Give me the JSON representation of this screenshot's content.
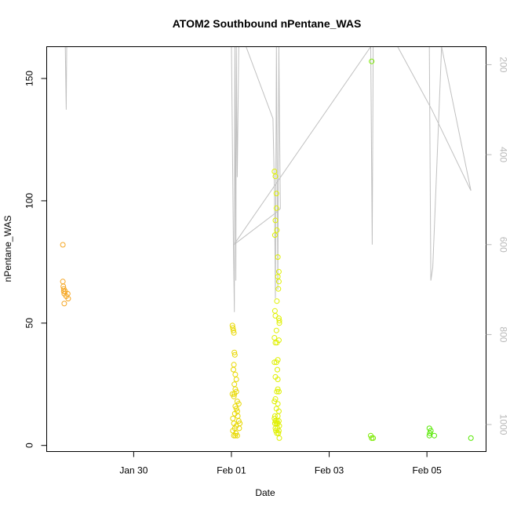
{
  "chart_data": {
    "type": "scatter",
    "title": "ATOM2 Southbound nPentane_WAS",
    "xlabel": "Date",
    "ylabel": "nPentane_WAS",
    "xlim": [
      28.22,
      37.21
    ],
    "ylim": [
      -2.5,
      163
    ],
    "xticks": [
      {
        "v": 30,
        "label": "Jan 30"
      },
      {
        "v": 32,
        "label": "Feb 01"
      },
      {
        "v": 34,
        "label": "Feb 03"
      },
      {
        "v": 36,
        "label": "Feb 05"
      }
    ],
    "yticks": [
      0,
      50,
      100,
      150
    ],
    "secondary_axis": {
      "side": "right",
      "reversed": true,
      "range": [
        1060,
        160
      ],
      "ticks": [
        200,
        400,
        600,
        800,
        1000
      ],
      "color": "#b8b8b8"
    },
    "line_series": {
      "color": "#c0c0c0",
      "points": [
        [
          28.6,
          160
        ],
        [
          28.62,
          300
        ],
        [
          28.63,
          160
        ],
        [
          28.65,
          160
        ],
        [
          30.5,
          160
        ],
        [
          32.0,
          160
        ],
        [
          32.04,
          600
        ],
        [
          32.06,
          750
        ],
        [
          32.07,
          160
        ],
        [
          32.09,
          680
        ],
        [
          32.1,
          160
        ],
        [
          32.12,
          450
        ],
        [
          32.15,
          160
        ],
        [
          32.3,
          160
        ],
        [
          32.85,
          320
        ],
        [
          32.88,
          480
        ],
        [
          32.9,
          720
        ],
        [
          32.92,
          160
        ],
        [
          32.95,
          700
        ],
        [
          32.97,
          160
        ],
        [
          33.0,
          520
        ],
        [
          32.9,
          530
        ],
        [
          32.05,
          600
        ],
        [
          34.85,
          160
        ],
        [
          34.88,
          600
        ],
        [
          34.9,
          160
        ],
        [
          35.5,
          160
        ],
        [
          36.05,
          160
        ],
        [
          36.08,
          680
        ],
        [
          36.12,
          650
        ],
        [
          36.3,
          160
        ],
        [
          36.9,
          480
        ],
        [
          36.1,
          300
        ],
        [
          35.4,
          160
        ]
      ]
    },
    "scatter_series": [
      {
        "color": "#f5a623",
        "points": [
          [
            28.55,
            82
          ],
          [
            28.55,
            67
          ],
          [
            28.56,
            65
          ],
          [
            28.57,
            64
          ],
          [
            28.57,
            63
          ],
          [
            28.58,
            62
          ],
          [
            28.6,
            63
          ],
          [
            28.62,
            61
          ],
          [
            28.65,
            62
          ],
          [
            28.66,
            60
          ],
          [
            28.58,
            58
          ]
        ]
      },
      {
        "color": "#e8d800",
        "points": [
          [
            32.02,
            49
          ],
          [
            32.03,
            48
          ],
          [
            32.04,
            47
          ],
          [
            32.05,
            46
          ],
          [
            32.06,
            38
          ],
          [
            32.07,
            37
          ],
          [
            32.05,
            33
          ],
          [
            32.04,
            31
          ],
          [
            32.08,
            29
          ],
          [
            32.1,
            27
          ],
          [
            32.06,
            25
          ],
          [
            32.08,
            23
          ],
          [
            32.1,
            22
          ],
          [
            32.02,
            21
          ],
          [
            32.06,
            21
          ],
          [
            32.05,
            20
          ],
          [
            32.12,
            18
          ],
          [
            32.15,
            17
          ],
          [
            32.08,
            16
          ],
          [
            32.1,
            15
          ],
          [
            32.12,
            14
          ],
          [
            32.07,
            13
          ],
          [
            32.13,
            12
          ],
          [
            32.03,
            11
          ],
          [
            32.15,
            10
          ],
          [
            32.05,
            9
          ],
          [
            32.17,
            9
          ],
          [
            32.1,
            8
          ],
          [
            32.07,
            7
          ],
          [
            32.16,
            7
          ],
          [
            32.03,
            6
          ],
          [
            32.09,
            5
          ],
          [
            32.05,
            4
          ],
          [
            32.08,
            4
          ],
          [
            32.12,
            4
          ]
        ]
      },
      {
        "color": "#dff000",
        "points": [
          [
            32.88,
            112
          ],
          [
            32.9,
            110
          ],
          [
            32.92,
            103
          ],
          [
            32.92,
            97
          ],
          [
            32.9,
            92
          ],
          [
            32.93,
            88
          ],
          [
            32.89,
            86
          ],
          [
            32.95,
            77
          ],
          [
            32.97,
            71
          ],
          [
            32.95,
            69
          ],
          [
            32.97,
            67
          ],
          [
            32.96,
            64
          ],
          [
            32.93,
            59
          ],
          [
            32.89,
            55
          ],
          [
            32.9,
            53
          ],
          [
            32.97,
            52
          ],
          [
            32.98,
            51
          ],
          [
            32.98,
            50
          ],
          [
            32.92,
            47
          ],
          [
            32.88,
            44
          ],
          [
            32.93,
            42
          ],
          [
            32.97,
            43
          ],
          [
            32.9,
            42
          ],
          [
            32.95,
            35
          ],
          [
            32.88,
            34
          ],
          [
            32.92,
            34
          ],
          [
            32.94,
            31
          ],
          [
            32.9,
            28
          ],
          [
            32.95,
            27
          ],
          [
            32.95,
            23
          ],
          [
            32.93,
            22
          ],
          [
            32.97,
            22
          ],
          [
            32.9,
            19
          ],
          [
            32.88,
            18
          ],
          [
            32.95,
            17
          ],
          [
            32.92,
            15
          ],
          [
            32.97,
            14
          ],
          [
            32.89,
            12
          ],
          [
            32.95,
            12
          ],
          [
            32.88,
            11
          ],
          [
            32.9,
            10
          ],
          [
            32.93,
            10
          ],
          [
            32.97,
            10
          ],
          [
            32.89,
            9
          ],
          [
            32.92,
            9
          ],
          [
            32.95,
            9
          ],
          [
            32.98,
            8
          ],
          [
            32.9,
            7
          ],
          [
            32.94,
            7
          ],
          [
            32.97,
            6
          ],
          [
            32.91,
            6
          ],
          [
            32.93,
            5
          ],
          [
            32.96,
            5
          ],
          [
            32.98,
            3
          ]
        ]
      },
      {
        "color": "#7bea00",
        "points": [
          [
            34.87,
            157
          ],
          [
            34.85,
            4
          ],
          [
            34.87,
            3
          ],
          [
            34.9,
            3
          ]
        ]
      },
      {
        "color": "#55e800",
        "points": [
          [
            36.05,
            7
          ],
          [
            36.08,
            6
          ],
          [
            36.06,
            5
          ],
          [
            36.05,
            4
          ],
          [
            36.15,
            4
          ],
          [
            36.9,
            3
          ]
        ]
      }
    ]
  }
}
